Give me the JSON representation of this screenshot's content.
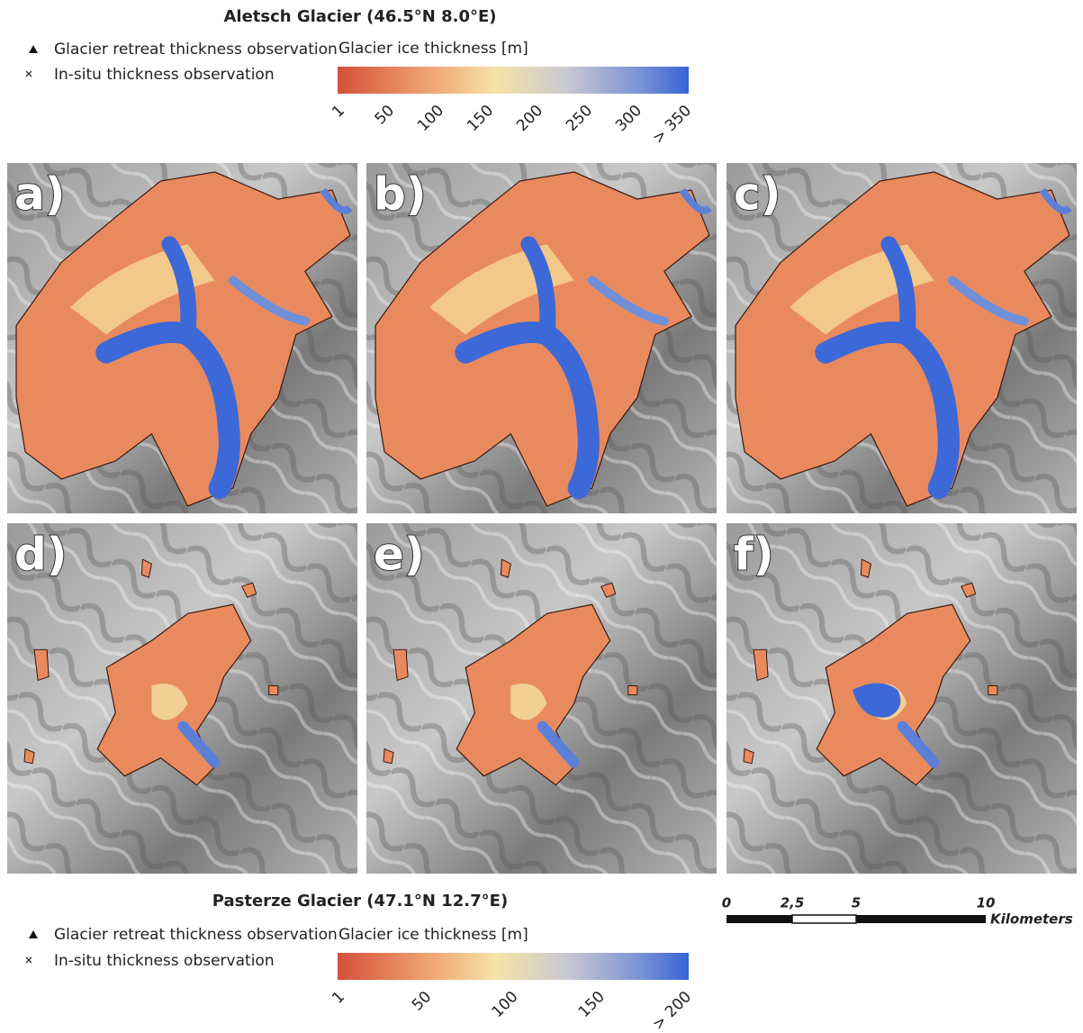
{
  "top": {
    "title": "Aletsch Glacier (46.5°N 8.0°E)",
    "legend": [
      "Glacier retreat thickness observation",
      "In-situ thickness observation"
    ],
    "colorbar": {
      "label": "Glacier ice thickness [m]",
      "ticks": [
        "1",
        "50",
        "100",
        "150",
        "200",
        "250",
        "300",
        "> 350"
      ]
    }
  },
  "panels": [
    "a)",
    "b)",
    "c)",
    "d)",
    "e)",
    "f)"
  ],
  "bottom": {
    "title": "Pasterze Glacier (47.1°N 12.7°E)",
    "legend": [
      "Glacier retreat thickness observation",
      "In-situ thickness observation"
    ],
    "colorbar": {
      "label": "Glacier ice thickness [m]",
      "ticks": [
        "1",
        "50",
        "100",
        "150",
        "> 200"
      ]
    }
  },
  "scale_bar": {
    "ticks": [
      "0",
      "2,5",
      "5",
      "10"
    ],
    "unit": "Kilometers"
  }
}
